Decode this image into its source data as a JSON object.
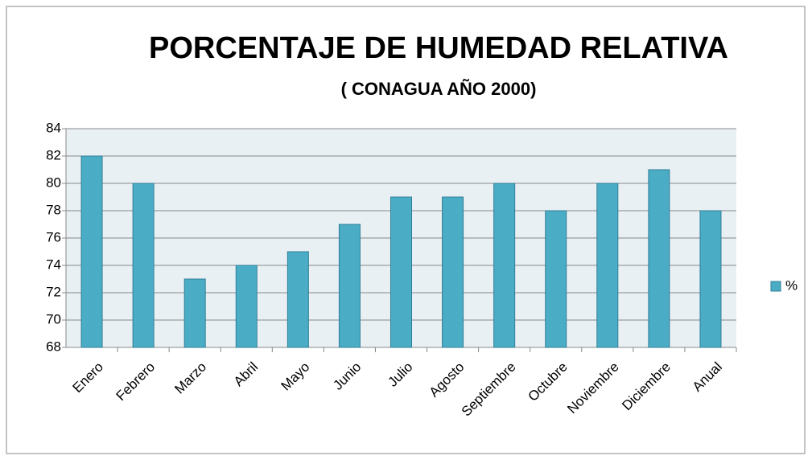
{
  "chart_data": {
    "type": "bar",
    "title": "PORCENTAJE DE HUMEDAD RELATIVA",
    "subtitle": "( CONAGUA AÑO 2000)",
    "categories": [
      "Enero",
      "Febrero",
      "Marzo",
      "Abril",
      "Mayo",
      "Junio",
      "Julio",
      "Agosto",
      "Septiembre",
      "Octubre",
      "Noviembre",
      "Diciembre",
      "Anual"
    ],
    "series": [
      {
        "name": "%",
        "color": "#4bacc6",
        "values": [
          82,
          80,
          73,
          74,
          75,
          77,
          79,
          79,
          80,
          78,
          80,
          81,
          78
        ]
      }
    ],
    "ylim": [
      68,
      84
    ],
    "yticks": [
      68,
      70,
      72,
      74,
      76,
      78,
      80,
      82,
      84
    ],
    "grid": true,
    "legend": "right"
  }
}
